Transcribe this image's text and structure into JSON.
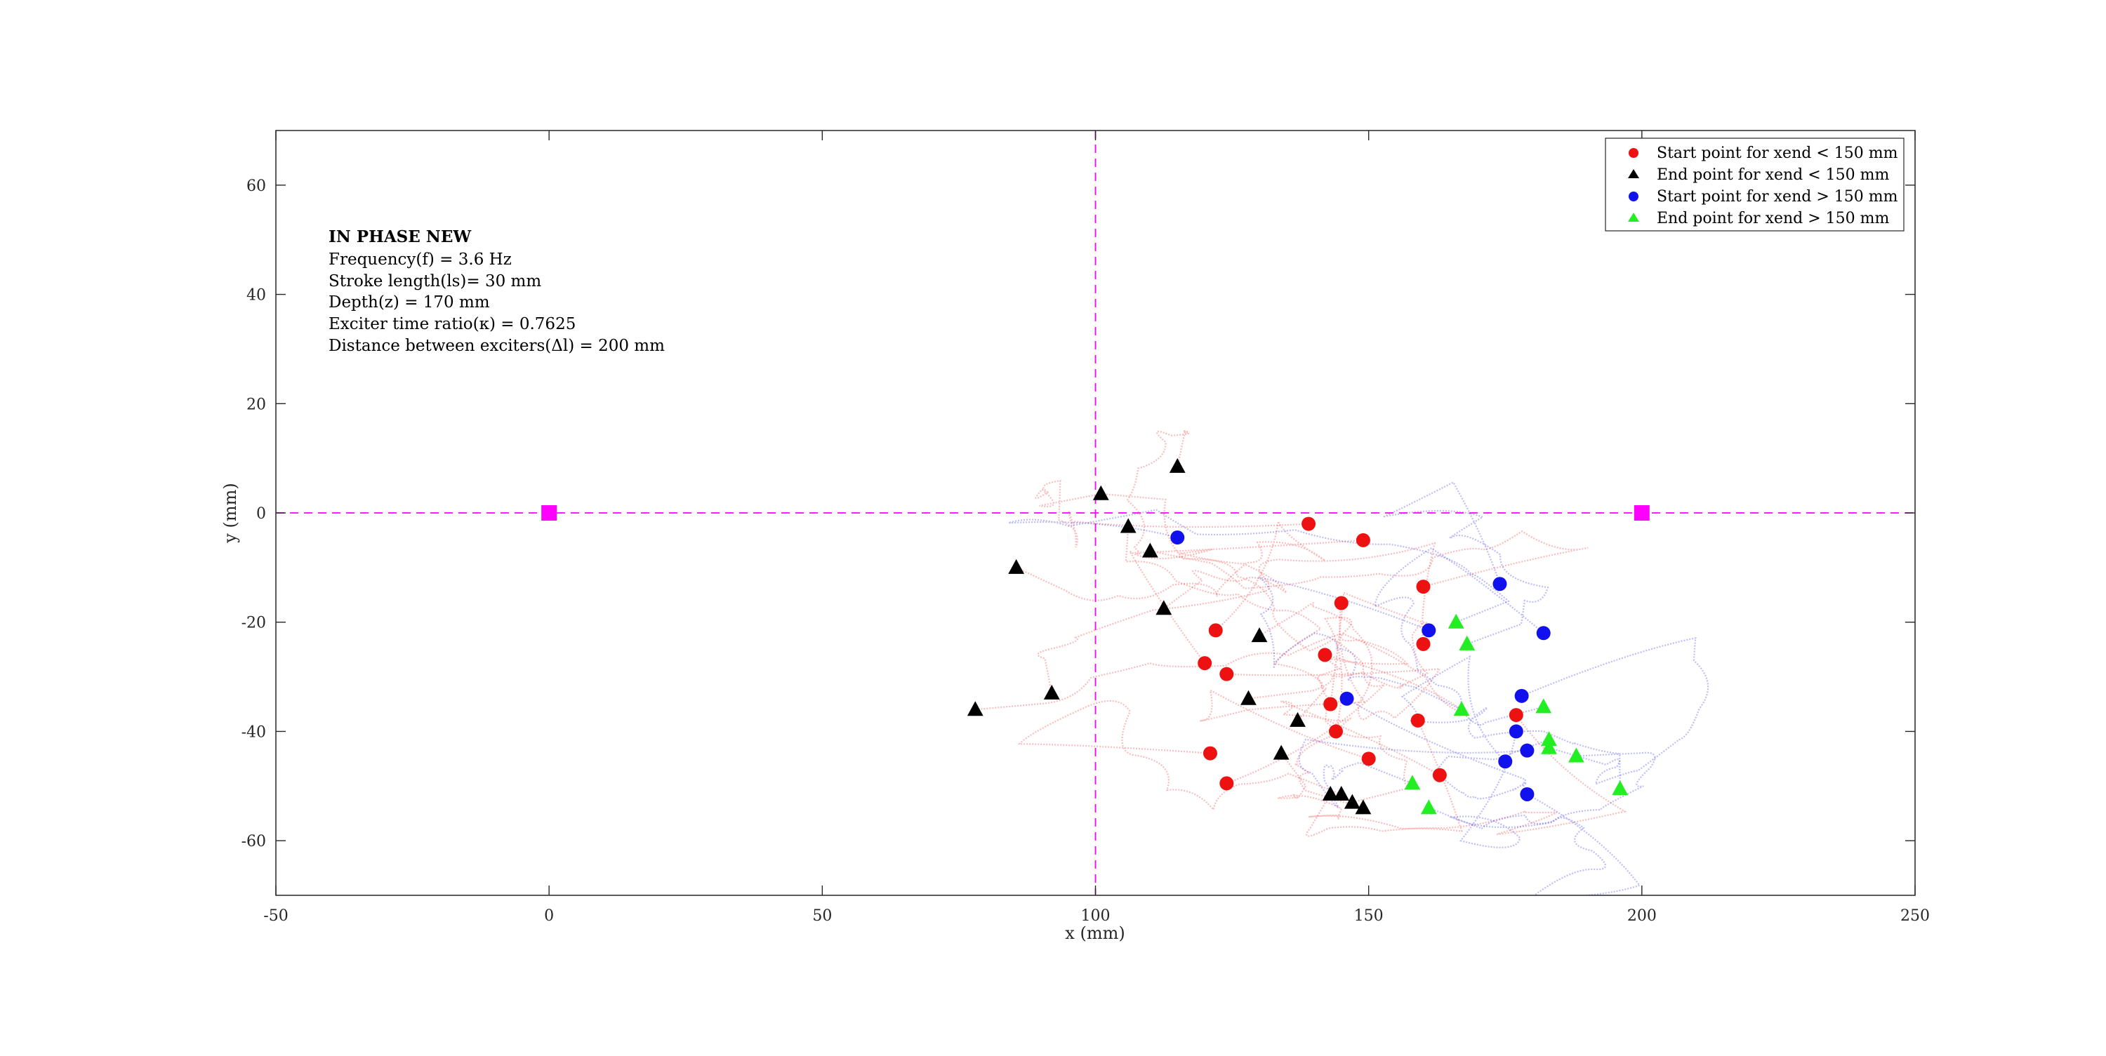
{
  "chart_data": {
    "type": "scatter",
    "xlabel": "x (mm)",
    "ylabel": "y (mm)",
    "xlim": [
      -50,
      250
    ],
    "ylim": [
      -70,
      70
    ],
    "xticks": [
      -50,
      0,
      50,
      100,
      150,
      200,
      250
    ],
    "yticks": [
      60,
      40,
      20,
      0,
      -20,
      -40,
      -60
    ],
    "xtick_labels": [
      "-50",
      "0",
      "50",
      "100",
      "150",
      "200",
      "250"
    ],
    "ytick_labels": [
      "60",
      "40",
      "20",
      "0",
      "-20",
      "-40",
      "-60"
    ],
    "grid": false,
    "legend_position": "top-right",
    "colors": {
      "red": "#ee1111",
      "blue": "#1111ee",
      "black": "#000000",
      "green": "#22ee22",
      "magenta": "#ff00ff"
    },
    "annotation": {
      "title": "IN PHASE NEW",
      "lines": [
        "Frequency(f) = 3.6 Hz",
        "Stroke length(ls)= 30 mm",
        "Depth(z) = 170 mm",
        "Exciter time ratio(κ) = 0.7625",
        "Distance between exciters(Δl) = 200 mm"
      ]
    },
    "reference_lines": {
      "vertical_x": 100,
      "horizontal_y": 0
    },
    "exciters": [
      {
        "x": 0,
        "y": 0
      },
      {
        "x": 200,
        "y": 0
      }
    ],
    "series": [
      {
        "name": "Start point for x_end < 150 mm",
        "legend": "Start point for xend < 150 mm",
        "marker": "circle",
        "color": "#ee1111",
        "points": [
          [
            139,
            -2
          ],
          [
            149,
            -5
          ],
          [
            145,
            -16.5
          ],
          [
            160,
            -13.5
          ],
          [
            122,
            -21.5
          ],
          [
            120,
            -27.5
          ],
          [
            124,
            -29.5
          ],
          [
            142,
            -26
          ],
          [
            160,
            -24
          ],
          [
            143,
            -35
          ],
          [
            144,
            -40
          ],
          [
            159,
            -38
          ],
          [
            177,
            -37
          ],
          [
            121,
            -44
          ],
          [
            150,
            -45
          ],
          [
            163,
            -48
          ],
          [
            124,
            -49.5
          ]
        ]
      },
      {
        "name": "End point for x_end < 150 mm",
        "legend": "End point for xend < 150 mm",
        "marker": "triangle",
        "color": "#000000",
        "points": [
          [
            101,
            3.5
          ],
          [
            115,
            8.5
          ],
          [
            106,
            -2.5
          ],
          [
            110,
            -7
          ],
          [
            85.5,
            -10
          ],
          [
            112.5,
            -17.5
          ],
          [
            130,
            -22.5
          ],
          [
            78,
            -36
          ],
          [
            92,
            -33
          ],
          [
            128,
            -34
          ],
          [
            137,
            -38
          ],
          [
            134,
            -44
          ],
          [
            143,
            -51.5
          ],
          [
            145,
            -51.5
          ],
          [
            147,
            -53
          ],
          [
            149,
            -54
          ]
        ]
      },
      {
        "name": "Start point for x_end > 150 mm",
        "legend": "Start point for xend > 150 mm",
        "marker": "circle",
        "color": "#1111ee",
        "points": [
          [
            115,
            -4.5
          ],
          [
            174,
            -13
          ],
          [
            161,
            -21.5
          ],
          [
            182,
            -22
          ],
          [
            146,
            -34
          ],
          [
            178,
            -33.5
          ],
          [
            177,
            -40
          ],
          [
            179,
            -43.5
          ],
          [
            175,
            -45.5
          ],
          [
            179,
            -51.5
          ]
        ]
      },
      {
        "name": "End point for x_end > 150 mm",
        "legend": "End point for xend > 150 mm",
        "marker": "triangle",
        "color": "#22ee22",
        "points": [
          [
            166,
            -20
          ],
          [
            168,
            -24
          ],
          [
            167,
            -36
          ],
          [
            182,
            -35.5
          ],
          [
            183,
            -41.5
          ],
          [
            183,
            -43
          ],
          [
            188,
            -44.5
          ],
          [
            158,
            -49.5
          ],
          [
            196,
            -50.5
          ],
          [
            161,
            -54
          ]
        ]
      }
    ]
  }
}
